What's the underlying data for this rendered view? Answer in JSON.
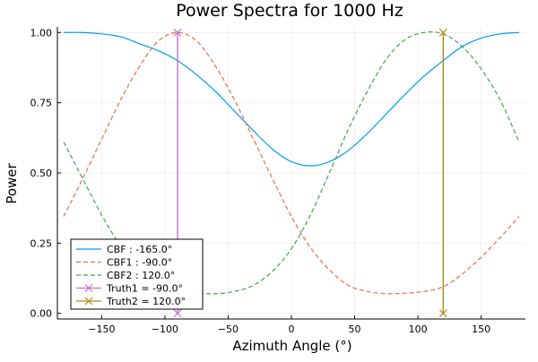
{
  "chart_data": {
    "type": "line",
    "title": "Power Spectra for 1000 Hz",
    "xlabel": "Azimuth Angle (°)",
    "ylabel": "Power",
    "xlim": [
      -185,
      185
    ],
    "ylim": [
      -0.02,
      1.02
    ],
    "xticks": [
      -150,
      -100,
      -50,
      0,
      50,
      100,
      150
    ],
    "xtick_labels": [
      "−150",
      "−100",
      "−50",
      "0",
      "50",
      "100",
      "150"
    ],
    "yticks": [
      0,
      0.25,
      0.5,
      0.75,
      1.0
    ],
    "ytick_labels": [
      "0.00",
      "0.25",
      "0.50",
      "0.75",
      "1.00"
    ],
    "grid": true,
    "legend_position": "bottom-left",
    "x": [
      -180,
      -165,
      -150,
      -135,
      -120,
      -105,
      -90,
      -75,
      -60,
      -45,
      -30,
      -15,
      0,
      15,
      30,
      45,
      60,
      75,
      90,
      105,
      120,
      135,
      150,
      165,
      180
    ],
    "series": [
      {
        "name": "CBF : -165.0°",
        "color": "#009AFA",
        "style": "solid",
        "values": [
          1.0,
          1.0,
          0.995,
          0.985,
          0.96,
          0.935,
          0.9,
          0.85,
          0.79,
          0.72,
          0.65,
          0.585,
          0.54,
          0.525,
          0.54,
          0.58,
          0.64,
          0.71,
          0.78,
          0.845,
          0.9,
          0.95,
          0.98,
          0.995,
          1.0
        ]
      },
      {
        "name": "CBF1 : -90.0°",
        "color": "#E36F47",
        "style": "dashed",
        "values": [
          0.345,
          0.48,
          0.62,
          0.76,
          0.88,
          0.97,
          1.0,
          0.97,
          0.88,
          0.76,
          0.62,
          0.48,
          0.345,
          0.235,
          0.155,
          0.1,
          0.078,
          0.07,
          0.072,
          0.078,
          0.095,
          0.14,
          0.2,
          0.27,
          0.345
        ]
      },
      {
        "name": "CBF2 : 120.0°",
        "color": "#3EA44E",
        "style": "dashed",
        "values": [
          0.61,
          0.48,
          0.35,
          0.24,
          0.155,
          0.1,
          0.08,
          0.072,
          0.07,
          0.078,
          0.1,
          0.15,
          0.23,
          0.35,
          0.5,
          0.655,
          0.79,
          0.905,
          0.975,
          1.0,
          0.995,
          0.95,
          0.87,
          0.76,
          0.61
        ]
      }
    ],
    "markers": [
      {
        "name": "Truth1 = -90.0°",
        "color": "#C271D2",
        "x": -90,
        "y": [
          0,
          1
        ]
      },
      {
        "name": "Truth2 = 120.0°",
        "color": "#AC8D18",
        "x": 120,
        "y": [
          0,
          1
        ]
      }
    ]
  }
}
